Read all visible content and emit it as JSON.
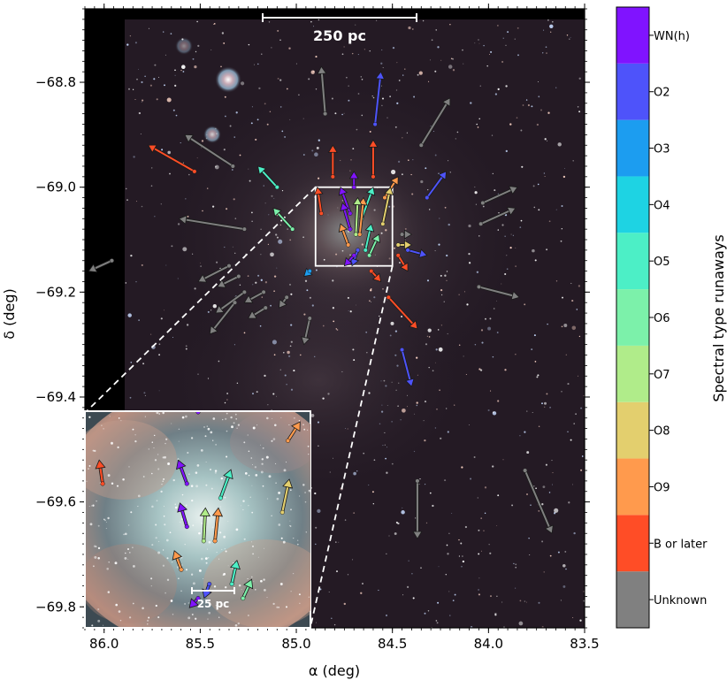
{
  "chart_data": {
    "type": "scatter",
    "title": "",
    "xlabel": "α (deg)",
    "ylabel": "δ (deg)",
    "xlim": [
      86.1,
      83.5
    ],
    "ylim": [
      -69.84,
      -68.66
    ],
    "xticks": [
      86.0,
      85.5,
      85.0,
      84.5,
      84.0,
      83.5
    ],
    "xtick_labels": [
      "86.0",
      "85.5",
      "85.0",
      "84.5",
      "84.0",
      "83.5"
    ],
    "yticks": [
      -68.8,
      -69.0,
      -69.2,
      -69.4,
      -69.6,
      -69.8
    ],
    "ytick_labels": [
      "−68.8",
      "−69.0",
      "−69.2",
      "−69.4",
      "−69.6",
      "−69.8"
    ],
    "scalebar_main": "250 pc",
    "scalebar_inset": "25 pc",
    "colorbar": {
      "title": "Spectral type runaways",
      "categories": [
        "Unknown",
        "B or later",
        "O9",
        "O8",
        "O7",
        "O6",
        "O5",
        "O4",
        "O3",
        "O2",
        "WN(h)"
      ],
      "colors": [
        "#808080",
        "#ff4d26",
        "#ff9a4d",
        "#e3cf6e",
        "#b0ec8a",
        "#7cf1aa",
        "#4cefc6",
        "#1ed3e3",
        "#1c9df0",
        "#4e53fa",
        "#8013ff"
      ]
    },
    "zoom_box": {
      "ra": [
        84.9,
        84.5
      ],
      "dec": [
        -69.15,
        -69.0
      ]
    },
    "runaways": [
      {
        "ra": 84.85,
        "dec": -68.86,
        "dra": 0.02,
        "ddec": 0.09,
        "type": "Unknown"
      },
      {
        "ra": 84.59,
        "dec": -68.88,
        "dra": -0.03,
        "ddec": 0.1,
        "type": "O2"
      },
      {
        "ra": 84.35,
        "dec": -68.92,
        "dra": -0.15,
        "ddec": 0.09,
        "type": "Unknown"
      },
      {
        "ra": 85.33,
        "dec": -68.96,
        "dra": 0.25,
        "ddec": 0.06,
        "type": "Unknown"
      },
      {
        "ra": 85.53,
        "dec": -68.97,
        "dra": 0.24,
        "ddec": 0.05,
        "type": "B or later"
      },
      {
        "ra": 84.81,
        "dec": -68.98,
        "dra": 0.0,
        "ddec": 0.06,
        "type": "B or later"
      },
      {
        "ra": 84.6,
        "dec": -68.98,
        "dra": 0.0,
        "ddec": 0.07,
        "type": "B or later"
      },
      {
        "ra": 85.1,
        "dec": -69.0,
        "dra": 0.1,
        "ddec": 0.04,
        "type": "O5"
      },
      {
        "ra": 84.32,
        "dec": -69.02,
        "dra": -0.1,
        "ddec": 0.05,
        "type": "O2"
      },
      {
        "ra": 84.54,
        "dec": -69.02,
        "dra": -0.07,
        "ddec": 0.04,
        "type": "O9"
      },
      {
        "ra": 84.7,
        "dec": -69.0,
        "dra": 0.0,
        "ddec": 0.03,
        "type": "WN(h)"
      },
      {
        "ra": 84.72,
        "dec": -69.05,
        "dra": 0.05,
        "ddec": 0.05,
        "type": "WN(h)"
      },
      {
        "ra": 84.87,
        "dec": -69.05,
        "dra": 0.02,
        "ddec": 0.05,
        "type": "B or later"
      },
      {
        "ra": 84.03,
        "dec": -69.03,
        "dra": -0.18,
        "ddec": 0.03,
        "type": "Unknown"
      },
      {
        "ra": 84.04,
        "dec": -69.07,
        "dra": -0.18,
        "ddec": 0.03,
        "type": "Unknown"
      },
      {
        "ra": 85.02,
        "dec": -69.08,
        "dra": 0.1,
        "ddec": 0.04,
        "type": "O6"
      },
      {
        "ra": 85.27,
        "dec": -69.08,
        "dra": 0.34,
        "ddec": 0.02,
        "type": "Unknown"
      },
      {
        "ra": 84.66,
        "dec": -69.06,
        "dra": -0.06,
        "ddec": 0.06,
        "type": "O5"
      },
      {
        "ra": 84.55,
        "dec": -69.07,
        "dra": -0.04,
        "ddec": 0.07,
        "type": "O8"
      },
      {
        "ra": 84.72,
        "dec": -69.08,
        "dra": 0.04,
        "ddec": 0.05,
        "type": "WN(h)"
      },
      {
        "ra": 84.67,
        "dec": -69.09,
        "dra": -0.02,
        "ddec": 0.07,
        "type": "O9"
      },
      {
        "ra": 84.69,
        "dec": -69.09,
        "dra": -0.01,
        "ddec": 0.07,
        "type": "O7"
      },
      {
        "ra": 84.73,
        "dec": -69.11,
        "dra": 0.04,
        "ddec": 0.04,
        "type": "O9"
      },
      {
        "ra": 84.62,
        "dec": -69.13,
        "dra": -0.05,
        "ddec": 0.04,
        "type": "O6"
      },
      {
        "ra": 84.64,
        "dec": -69.12,
        "dra": -0.03,
        "ddec": 0.05,
        "type": "O5"
      },
      {
        "ra": 84.68,
        "dec": -69.12,
        "dra": 0.03,
        "ddec": -0.03,
        "type": "O2"
      },
      {
        "ra": 84.7,
        "dec": -69.13,
        "dra": 0.05,
        "ddec": -0.02,
        "type": "WN(h)"
      },
      {
        "ra": 84.45,
        "dec": -69.09,
        "dra": -0.05,
        "ddec": 0.0,
        "type": "Unknown"
      },
      {
        "ra": 84.47,
        "dec": -69.11,
        "dra": -0.07,
        "ddec": 0.0,
        "type": "O8"
      },
      {
        "ra": 84.42,
        "dec": -69.12,
        "dra": -0.1,
        "ddec": -0.01,
        "type": "O2"
      },
      {
        "ra": 84.47,
        "dec": -69.13,
        "dra": -0.05,
        "ddec": -0.03,
        "type": "B or later"
      },
      {
        "ra": 85.96,
        "dec": -69.14,
        "dra": 0.12,
        "ddec": -0.02,
        "type": "Unknown"
      },
      {
        "ra": 85.35,
        "dec": -69.15,
        "dra": 0.16,
        "ddec": -0.03,
        "type": "Unknown"
      },
      {
        "ra": 85.3,
        "dec": -69.17,
        "dra": 0.11,
        "ddec": -0.02,
        "type": "Unknown"
      },
      {
        "ra": 84.93,
        "dec": -69.16,
        "dra": 0.03,
        "ddec": -0.01,
        "type": "O3"
      },
      {
        "ra": 84.61,
        "dec": -69.16,
        "dra": -0.05,
        "ddec": -0.02,
        "type": "B or later"
      },
      {
        "ra": 85.27,
        "dec": -69.2,
        "dra": 0.15,
        "ddec": -0.04,
        "type": "Unknown"
      },
      {
        "ra": 85.17,
        "dec": -69.2,
        "dra": 0.1,
        "ddec": -0.02,
        "type": "Unknown"
      },
      {
        "ra": 85.05,
        "dec": -69.21,
        "dra": 0.04,
        "ddec": -0.02,
        "type": "Unknown"
      },
      {
        "ra": 85.32,
        "dec": -69.22,
        "dra": 0.13,
        "ddec": -0.06,
        "type": "Unknown"
      },
      {
        "ra": 85.16,
        "dec": -69.23,
        "dra": 0.09,
        "ddec": -0.02,
        "type": "Unknown"
      },
      {
        "ra": 84.05,
        "dec": -69.19,
        "dra": -0.21,
        "ddec": -0.02,
        "type": "Unknown"
      },
      {
        "ra": 84.52,
        "dec": -69.21,
        "dra": -0.15,
        "ddec": -0.06,
        "type": "B or later"
      },
      {
        "ra": 84.93,
        "dec": -69.25,
        "dra": 0.03,
        "ddec": -0.05,
        "type": "Unknown"
      },
      {
        "ra": 84.45,
        "dec": -69.31,
        "dra": -0.05,
        "ddec": -0.07,
        "type": "O2"
      },
      {
        "ra": 84.37,
        "dec": -69.56,
        "dra": 0.0,
        "ddec": -0.11,
        "type": "Unknown"
      },
      {
        "ra": 83.81,
        "dec": -69.54,
        "dra": -0.14,
        "ddec": -0.12,
        "type": "Unknown"
      }
    ]
  }
}
